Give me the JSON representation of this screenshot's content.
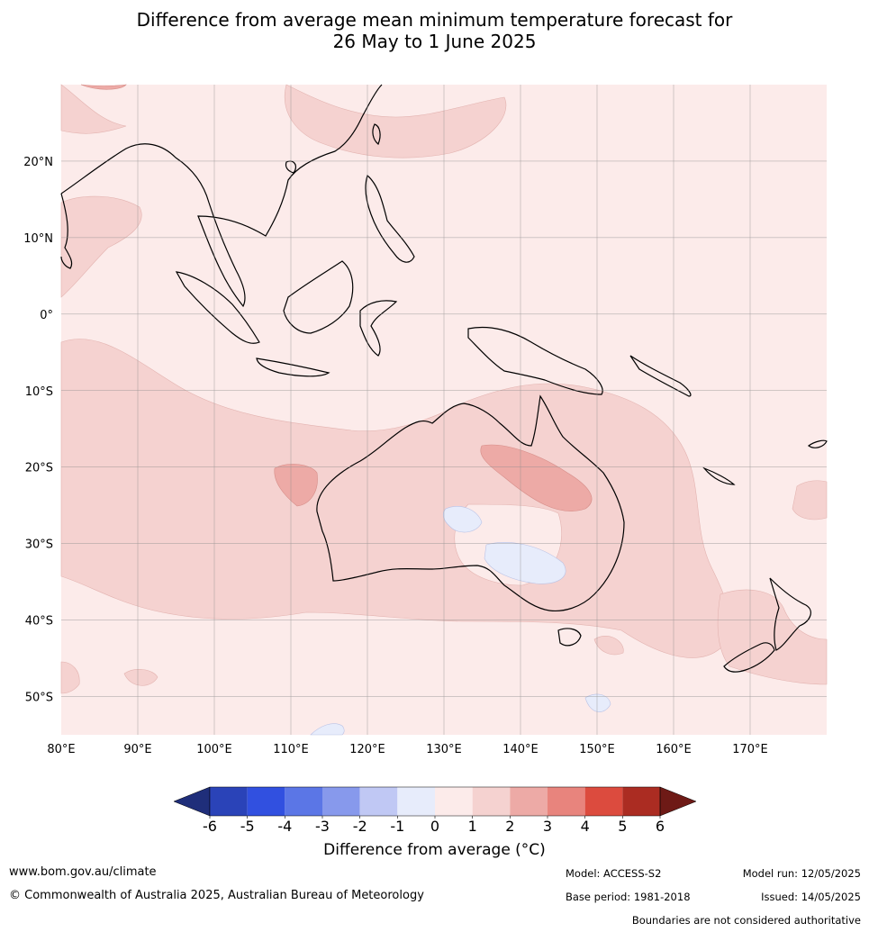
{
  "title": {
    "line1": "Difference from average mean minimum temperature forecast for",
    "line2": "26 May to 1 June 2025"
  },
  "map": {
    "extent": {
      "lon_min": 80,
      "lon_max": 180,
      "lat_min": -55,
      "lat_max": 30
    },
    "lon_ticks": [
      80,
      90,
      100,
      110,
      120,
      130,
      140,
      150,
      160,
      170
    ],
    "lon_labels": [
      "80°E",
      "90°E",
      "100°E",
      "110°E",
      "120°E",
      "130°E",
      "140°E",
      "150°E",
      "160°E",
      "170°E"
    ],
    "lat_ticks": [
      20,
      10,
      0,
      -10,
      -20,
      -30,
      -40,
      -50
    ],
    "lat_labels": [
      "20°N",
      "10°N",
      "0°",
      "10°S",
      "20°S",
      "30°S",
      "40°S",
      "50°S"
    ],
    "grid": true
  },
  "colorbar": {
    "label": "Difference from average (°C)",
    "ticks": [
      "-6",
      "-5",
      "-4",
      "-3",
      "-2",
      "-1",
      "0",
      "1",
      "2",
      "3",
      "4",
      "5",
      "6"
    ],
    "colors": [
      "#1f2e7a",
      "#2a43b8",
      "#3150e0",
      "#5b76e6",
      "#8799ec",
      "#c0c8f4",
      "#e7ecfb",
      "#fcebea",
      "#f5d2d0",
      "#edaaa6",
      "#e8847d",
      "#dc4b3e",
      "#ab2c22",
      "#6e1a16"
    ]
  },
  "footer": {
    "website": "www.bom.gov.au/climate",
    "copyright": "© Commonwealth of Australia 2025, Australian Bureau of Meteorology",
    "model": "Model: ACCESS-S2",
    "base_period": "Base period: 1981-2018",
    "model_run": "Model run: 12/05/2025",
    "issued": "Issued: 14/05/2025",
    "disclaimer": "Boundaries are not considered authoritative"
  }
}
